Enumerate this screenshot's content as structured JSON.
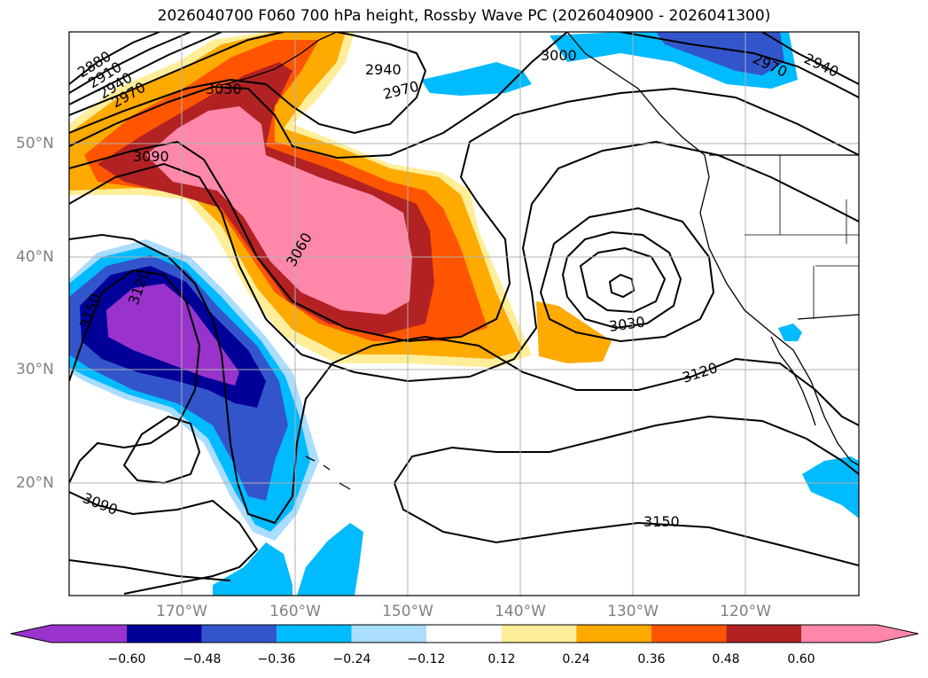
{
  "title": "2026040700 F060 700 hPa height, Rossby Wave PC (2026040900 - 2026041300)",
  "map": {
    "region": "North Pacific / western North America",
    "lat_labels": [
      "50°N",
      "40°N",
      "30°N",
      "20°N"
    ],
    "lon_labels": [
      "170°W",
      "160°W",
      "150°W",
      "140°W",
      "130°W",
      "120°W"
    ],
    "contour_labels": [
      "2880",
      "2910",
      "2940",
      "2970",
      "3030",
      "3090",
      "2940",
      "2970",
      "3000",
      "2970",
      "2940",
      "3060",
      "3120",
      "3150",
      "3030",
      "3120",
      "3090",
      "3150"
    ],
    "contour_interval": 30,
    "contour_units": "m"
  },
  "colorbar": {
    "ticks": [
      "−0.60",
      "−0.48",
      "−0.36",
      "−0.24",
      "−0.12",
      "0.12",
      "0.24",
      "0.36",
      "0.48",
      "0.60"
    ],
    "colors": [
      "#9933cc",
      "#000099",
      "#3355cc",
      "#00bbff",
      "#aaddff",
      "#ffffff",
      "#ffee99",
      "#ffaa00",
      "#ff5500",
      "#b22222",
      "#ff88aa",
      "#ff88aa"
    ]
  }
}
